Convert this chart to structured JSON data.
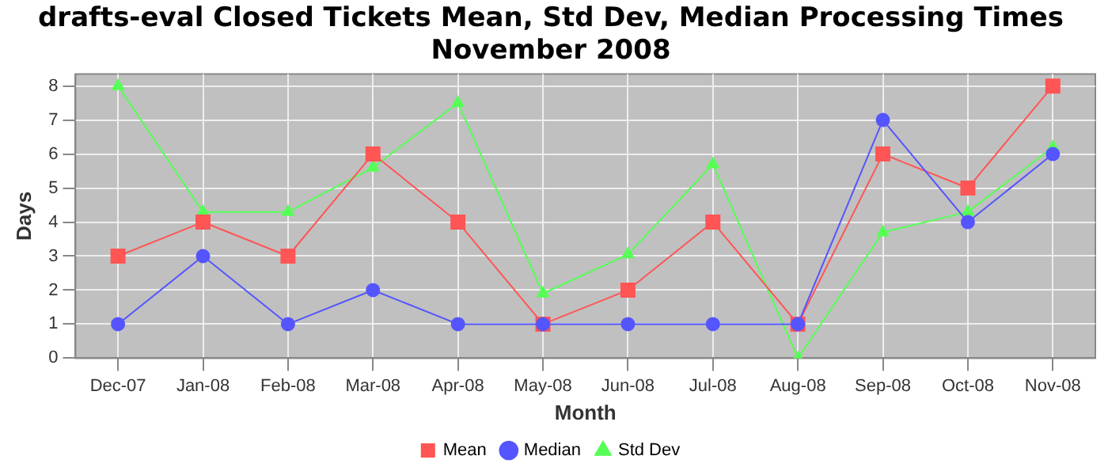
{
  "chart_data": {
    "type": "line",
    "title": "drafts-eval Closed Tickets Mean, Std Dev, Median Processing Times\nNovember 2008",
    "xlabel": "Month",
    "ylabel": "Days",
    "categories": [
      "Dec-07",
      "Jan-08",
      "Feb-08",
      "Mar-08",
      "Apr-08",
      "May-08",
      "Jun-08",
      "Jul-08",
      "Aug-08",
      "Sep-08",
      "Oct-08",
      "Nov-08"
    ],
    "series": [
      {
        "name": "Mean",
        "color": "#ff5555",
        "marker": "square",
        "values": [
          3,
          4,
          3,
          6,
          4,
          1,
          2,
          4,
          1,
          6,
          5,
          8
        ]
      },
      {
        "name": "Median",
        "color": "#5555ff",
        "marker": "circle",
        "values": [
          1,
          3,
          1,
          2,
          1,
          1,
          1,
          1,
          1,
          7,
          4,
          6
        ]
      },
      {
        "name": "Std Dev",
        "color": "#55ff55",
        "marker": "triangle",
        "values": [
          8,
          4.3,
          4.3,
          5.6,
          7.5,
          1.9,
          3.05,
          5.7,
          0,
          3.7,
          4.3,
          6.2
        ]
      }
    ],
    "ylim": [
      0,
      8.35
    ],
    "yticks": [
      0,
      1,
      2,
      3,
      4,
      5,
      6,
      7,
      8
    ],
    "grid": true,
    "legend": "bottom"
  }
}
